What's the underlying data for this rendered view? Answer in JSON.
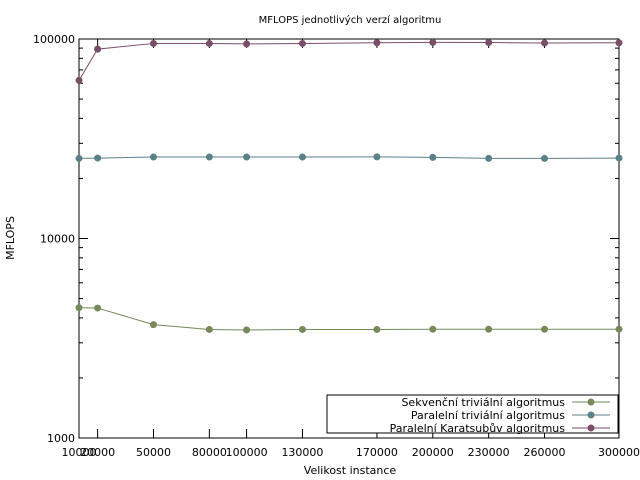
{
  "chart_data": {
    "type": "line",
    "title": "MFLOPS jednotlivých verzí algoritmu",
    "xlabel": "Velikost instance",
    "ylabel": "MFLOPS",
    "yscale": "log",
    "ylim": [
      1000,
      100000
    ],
    "xlim": [
      10000,
      300000
    ],
    "grid": false,
    "legend_position": "bottom-right",
    "x": [
      10000,
      20000,
      50000,
      80000,
      100000,
      130000,
      170000,
      200000,
      230000,
      260000,
      300000
    ],
    "x_tick_labels": [
      "10000",
      "20000",
      "50000",
      "80000",
      "100000",
      "130000",
      "170000",
      "200000",
      "230000",
      "260000",
      "300000"
    ],
    "y_ticks": [
      1000,
      10000,
      100000
    ],
    "y_tick_labels": [
      "1000",
      "10000",
      "100000"
    ],
    "series": [
      {
        "name": "Sekvenční triviální algoritmus",
        "color": "#77885a",
        "values": [
          4500,
          4480,
          3700,
          3500,
          3480,
          3500,
          3500,
          3510,
          3510,
          3510,
          3510
        ]
      },
      {
        "name": "Paralelní triviální algoritmus",
        "color": "#5a8088",
        "values": [
          25200,
          25300,
          25600,
          25600,
          25600,
          25600,
          25650,
          25500,
          25200,
          25200,
          25300
        ]
      },
      {
        "name": "Paralelní Karatsubův algoritmus",
        "color": "#7a4e68",
        "values": [
          62000,
          89000,
          95000,
          95000,
          94500,
          95000,
          95800,
          96200,
          96000,
          95500,
          95800
        ]
      }
    ]
  }
}
